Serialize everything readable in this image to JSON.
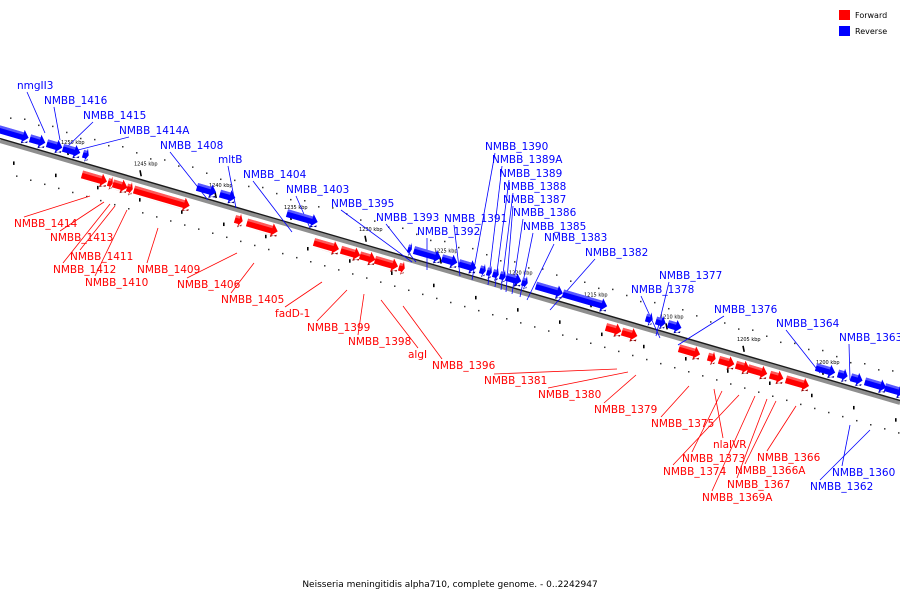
{
  "legend": {
    "forward_label": "Forward",
    "reverse_label": "Reverse",
    "forward_color": "#ff0000",
    "reverse_color": "#0000ff"
  },
  "caption": "Neisseria meningitidis alpha710, complete genome. - 0..2242947",
  "axis": {
    "ticks": [
      "1250 kbp",
      "1245 kbp",
      "1240 kbp",
      "1235 kbp",
      "1230 kbp",
      "1225 kbp",
      "1220 kbp",
      "1215 kbp",
      "1210 kbp",
      "1205 kbp",
      "1200 kbp"
    ]
  },
  "reverse_genes": [
    "nmgII3",
    "NMBB_1416",
    "NMBB_1415",
    "NMBB_1414A",
    "NMBB_1408",
    "mltB",
    "NMBB_1404",
    "NMBB_1403",
    "NMBB_1395",
    "NMBB_1393",
    "NMBB_1392",
    "NMBB_1391",
    "NMBB_1390",
    "NMBB_1389A",
    "NMBB_1389",
    "NMBB_1388",
    "NMBB_1387",
    "NMBB_1386",
    "NMBB_1385",
    "NMBB_1383",
    "NMBB_1382",
    "NMBB_1377",
    "NMBB_1378",
    "NMBB_1376",
    "NMBB_1364",
    "NMBB_1363",
    "NMBB_1360",
    "NMBB_1362"
  ],
  "forward_genes": [
    "NMBB_1414",
    "NMBB_1413",
    "NMBB_1411",
    "NMBB_1412",
    "NMBB_1410",
    "NMBB_1409",
    "NMBB_1406",
    "NMBB_1405",
    "fadD-1",
    "NMBB_1399",
    "NMBB_1398",
    "algI",
    "NMBB_1396",
    "NMBB_1381",
    "NMBB_1380",
    "NMBB_1379",
    "NMBB_1375",
    "nlaIVR",
    "NMBB_1373",
    "NMBB_1374",
    "NMBB_1366",
    "NMBB_1366A",
    "NMBB_1367",
    "NMBB_1369A"
  ]
}
